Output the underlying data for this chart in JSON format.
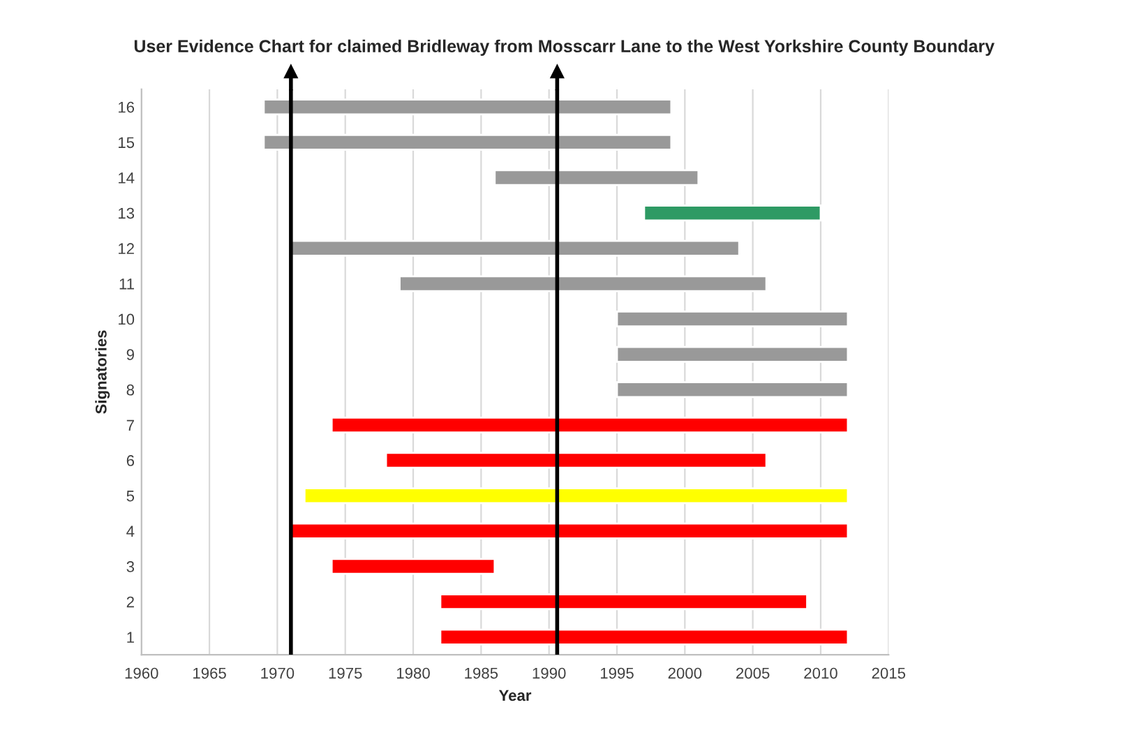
{
  "chart_data": {
    "type": "bar",
    "orientation": "horizontal",
    "title": "User Evidence Chart for claimed Bridleway from Mosscarr Lane to the West Yorkshire County Boundary",
    "xlabel": "Year",
    "ylabel": "Signatories",
    "categories": [
      "16",
      "15",
      "14",
      "13",
      "12",
      "11",
      "10",
      "9",
      "8",
      "7",
      "6",
      "5",
      "4",
      "3",
      "2",
      "1"
    ],
    "base": [
      1969,
      1969,
      1986,
      1997,
      1971,
      1979,
      1995,
      1995,
      1995,
      1974,
      1978,
      1972,
      1971,
      1974,
      1982,
      1982
    ],
    "values": [
      30,
      30,
      15,
      13,
      33,
      27,
      17,
      17,
      17,
      38,
      28,
      40,
      41,
      12,
      27,
      30
    ],
    "colors": [
      "#999999",
      "#999999",
      "#999999",
      "#2e9a64",
      "#999999",
      "#999999",
      "#999999",
      "#999999",
      "#999999",
      "#ff0000",
      "#ff0000",
      "#ffff00",
      "#ff0000",
      "#ff0000",
      "#ff0000",
      "#ff0000"
    ],
    "xlim": [
      1960,
      2015
    ],
    "xticks": [
      1960,
      1965,
      1970,
      1975,
      1980,
      1985,
      1990,
      1995,
      2000,
      2005,
      2010,
      2015
    ],
    "grid": "x",
    "ref_lines": [
      {
        "axis": "x",
        "value": 1971,
        "color": "#000000"
      },
      {
        "axis": "x",
        "value": 1990.6,
        "color": "#000000"
      }
    ]
  }
}
